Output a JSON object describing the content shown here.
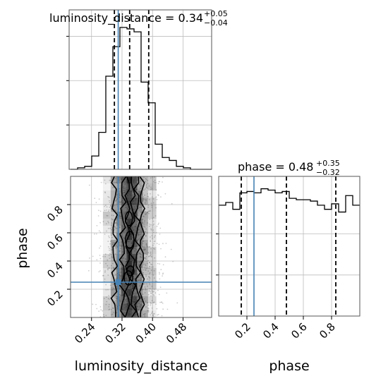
{
  "chart_data": {
    "type": "corner",
    "colors": {
      "truth": "#4682b4",
      "hist": "#000000",
      "quantile": "#000000",
      "density": "#000000",
      "scatter": "#9e9e9e",
      "grid": "#bdbdbd"
    },
    "parameters": [
      {
        "name": "luminosity_distance",
        "title_main": "luminosity_distance = 0.34",
        "title_sup": "+0.05",
        "title_sub": "−0.04",
        "axis_label": "luminosity_distance",
        "range": [
          0.185,
          0.555
        ],
        "ticks": [
          0.24,
          0.32,
          0.4,
          0.48
        ],
        "tick_labels": [
          "0.24",
          "0.32",
          "0.40",
          "0.48"
        ],
        "quantiles": [
          0.3,
          0.34,
          0.39
        ],
        "truth": 0.31,
        "hist": {
          "bin_width": 0.0185,
          "edges_start": 0.185,
          "counts": [
            0,
            1,
            2,
            9,
            25,
            63,
            83,
            96,
            95,
            93,
            59,
            45,
            17,
            8,
            6,
            2,
            1,
            0,
            0,
            0
          ]
        }
      },
      {
        "name": "phase",
        "title_main": "phase = 0.48",
        "title_sup": "+0.35",
        "title_sub": "−0.32",
        "axis_label": "phase",
        "range": [
          0.0,
          1.0
        ],
        "ticks": [
          0.2,
          0.4,
          0.6,
          0.8
        ],
        "tick_labels": [
          "0.2",
          "0.4",
          "0.6",
          "0.8"
        ],
        "quantiles": [
          0.16,
          0.48,
          0.83
        ],
        "truth": 0.25,
        "hist": {
          "bin_width": 0.05,
          "edges_start": 0.0,
          "counts": [
            81,
            83,
            78,
            90,
            91,
            90,
            93,
            92,
            90,
            91,
            86,
            85,
            85,
            84,
            81,
            78,
            82,
            76,
            88,
            81
          ]
        }
      }
    ],
    "truth_point": [
      0.31,
      0.25
    ],
    "density_ridges_x": [
      0.3,
      0.322,
      0.335,
      0.348,
      0.36,
      0.372
    ]
  }
}
